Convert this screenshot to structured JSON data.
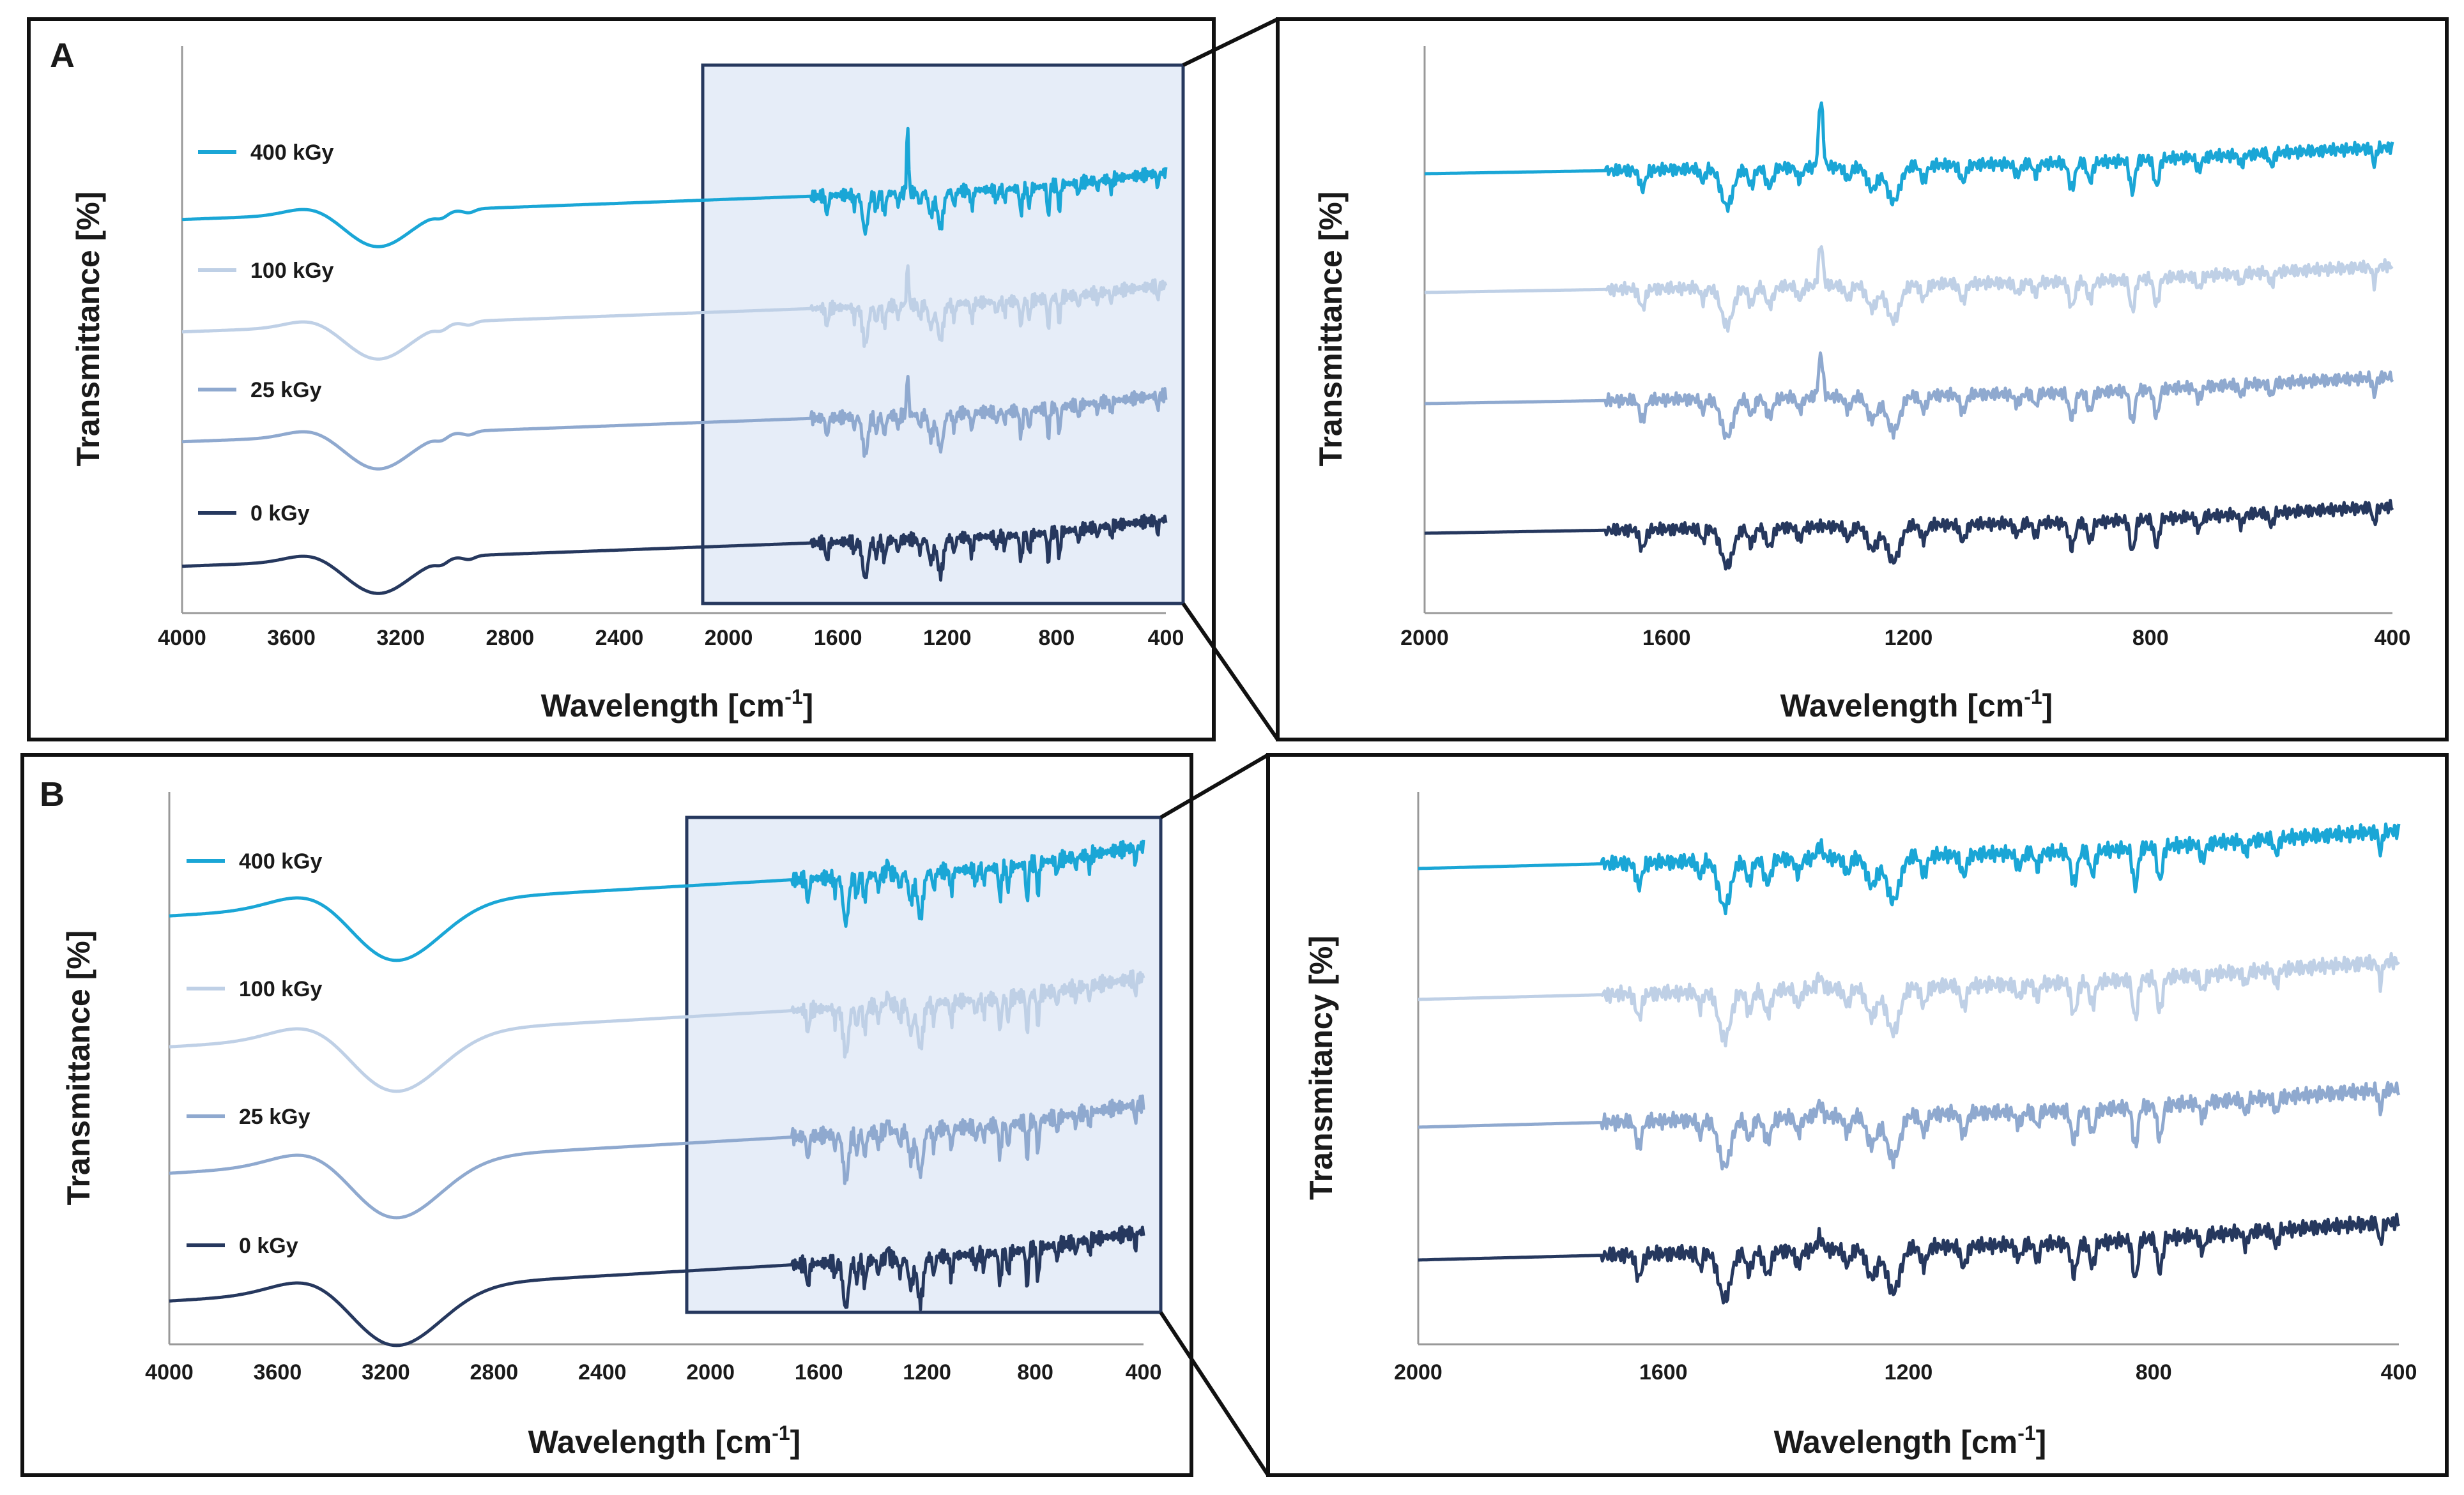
{
  "figure": {
    "panels": [
      {
        "id": "A",
        "letter": "A"
      },
      {
        "id": "B",
        "letter": "B"
      }
    ]
  },
  "chart_data": [
    {
      "id": "A-full",
      "panel": "A",
      "type": "line",
      "title": "",
      "xlabel": "Wavelength [cm-1]",
      "ylabel": "Transmittance [%]",
      "xlim": [
        4000,
        400
      ],
      "x_ticks": [
        "4000",
        "3600",
        "3200",
        "2800",
        "2400",
        "2000",
        "1600",
        "1200",
        "800",
        "400"
      ],
      "highlight_region": [
        2000,
        400
      ],
      "legend": [
        "400 kGy",
        "100 kGy",
        "25 kGy",
        "0 kGy"
      ],
      "series": [
        {
          "name": "400 kGy",
          "color": "#1aa6d6",
          "offset": 3
        },
        {
          "name": "100 kGy",
          "color": "#bfd0e6",
          "offset": 2
        },
        {
          "name": "25 kGy",
          "color": "#8fa9cf",
          "offset": 1
        },
        {
          "name": "0 kGy",
          "color": "#26385e",
          "offset": 0
        }
      ]
    },
    {
      "id": "A-zoom",
      "panel": "A",
      "type": "line",
      "title": "",
      "xlabel": "Wavelength [cm-1]",
      "ylabel": "Transmittance [%]",
      "xlim": [
        2000,
        400
      ],
      "x_ticks": [
        "2000",
        "1600",
        "1200",
        "800",
        "400"
      ],
      "series": [
        {
          "name": "400 kGy",
          "color": "#1aa6d6",
          "offset": 3
        },
        {
          "name": "100 kGy",
          "color": "#bfd0e6",
          "offset": 2
        },
        {
          "name": "25 kGy",
          "color": "#8fa9cf",
          "offset": 1
        },
        {
          "name": "0 kGy",
          "color": "#26385e",
          "offset": 0
        }
      ]
    },
    {
      "id": "B-full",
      "panel": "B",
      "type": "line",
      "title": "",
      "xlabel": "Wavelength [cm-1]",
      "ylabel": "Transmittance [%]",
      "xlim": [
        4000,
        400
      ],
      "x_ticks": [
        "4000",
        "3600",
        "3200",
        "2800",
        "2400",
        "2000",
        "1600",
        "1200",
        "800",
        "400"
      ],
      "highlight_region": [
        2000,
        400
      ],
      "legend": [
        "400 kGy",
        "100 kGy",
        "25 kGy",
        "0 kGy"
      ],
      "series": [
        {
          "name": "400 kGy",
          "color": "#1aa6d6",
          "offset": 3
        },
        {
          "name": "100 kGy",
          "color": "#bfd0e6",
          "offset": 2
        },
        {
          "name": "25 kGy",
          "color": "#8fa9cf",
          "offset": 1
        },
        {
          "name": "0 kGy",
          "color": "#26385e",
          "offset": 0
        }
      ]
    },
    {
      "id": "B-zoom",
      "panel": "B",
      "type": "line",
      "title": "",
      "xlabel": "Wavelength [cm-1]",
      "ylabel": "Transmitancy [%]",
      "xlim": [
        2000,
        400
      ],
      "x_ticks": [
        "2000",
        "1600",
        "1200",
        "800",
        "400"
      ],
      "series": [
        {
          "name": "400 kGy",
          "color": "#1aa6d6",
          "offset": 3
        },
        {
          "name": "100 kGy",
          "color": "#bfd0e6",
          "offset": 2
        },
        {
          "name": "25 kGy",
          "color": "#8fa9cf",
          "offset": 1
        },
        {
          "name": "0 kGy",
          "color": "#26385e",
          "offset": 0
        }
      ]
    }
  ]
}
